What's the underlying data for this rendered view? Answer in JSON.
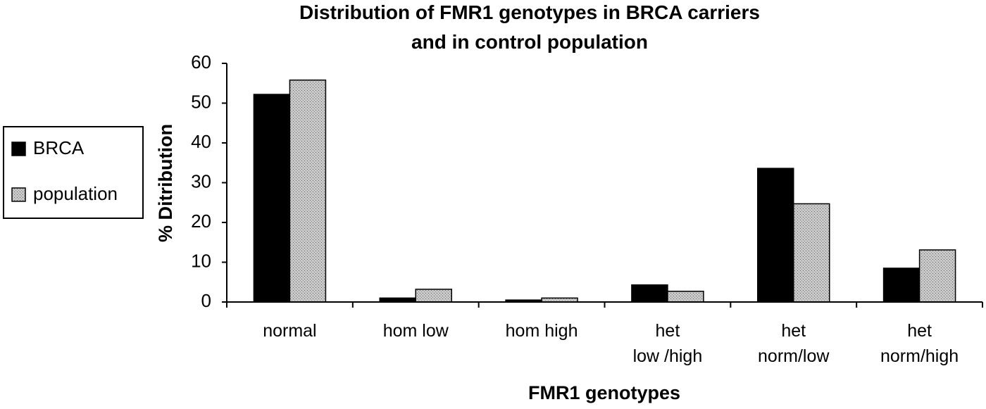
{
  "chart_data": {
    "type": "bar",
    "title": "Distribution of FMR1 genotypes in BRCA carriers\nand in control population",
    "x_label": "FMR1 genotypes",
    "y_label": "% Ditribution",
    "categories": [
      "normal",
      "hom low",
      "hom high",
      "het\nlow /high",
      "het\nnorm/low",
      "het\nnorm/high"
    ],
    "series": [
      {
        "name": "BRCA",
        "color": "#000000",
        "values": [
          52.2,
          1.0,
          0.5,
          4.3,
          33.6,
          8.5
        ]
      },
      {
        "name": "population",
        "color": "#c8c8c8",
        "values": [
          55.8,
          3.2,
          1.0,
          2.7,
          24.7,
          13.1
        ]
      }
    ],
    "ylim": [
      0,
      60
    ],
    "yticks": [
      0,
      10,
      20,
      30,
      40,
      50,
      60
    ],
    "grid": false,
    "legend": "left"
  }
}
